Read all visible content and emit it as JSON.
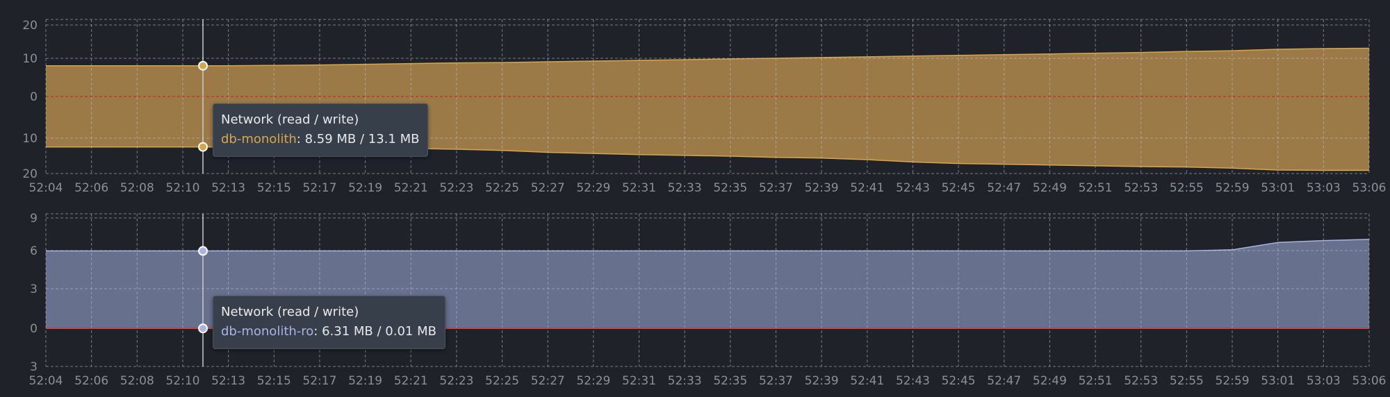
{
  "colors": {
    "background": "#1f2329",
    "grid": "#bfc3c8",
    "zero_line": "#c0392b",
    "series_1": "#d9a54a",
    "series_1_fill": "#a2804a",
    "series_2": "#a9b3e6",
    "series_2_fill": "#6b7592",
    "tooltip_bg": "#37404a",
    "cursor": "#c7cacf"
  },
  "x_tick_labels": [
    "52:04",
    "52:06",
    "52:08",
    "52:10",
    "52:13",
    "52:15",
    "52:17",
    "52:19",
    "52:21",
    "52:23",
    "52:25",
    "52:27",
    "52:29",
    "52:31",
    "52:33",
    "52:35",
    "52:37",
    "52:39",
    "52:41",
    "52:43",
    "52:45",
    "52:47",
    "52:49",
    "52:51",
    "52:53",
    "52:55",
    "52:59",
    "53:01",
    "53:03",
    "53:06"
  ],
  "chart_data": [
    {
      "type": "area",
      "series": [
        {
          "name": "db-monolith",
          "read_values": [
            8.6,
            8.6,
            8.6,
            8.6,
            8.6,
            8.7,
            8.8,
            9.0,
            9.2,
            9.4,
            9.5,
            9.7,
            9.9,
            10.1,
            10.3,
            10.5,
            10.7,
            10.9,
            11.1,
            11.3,
            11.5,
            11.7,
            11.9,
            12.1,
            12.3,
            12.6,
            12.8,
            13.2,
            13.4,
            13.5
          ],
          "write_values": [
            13.1,
            13.1,
            13.1,
            13.1,
            13.1,
            13.2,
            13.3,
            13.4,
            13.5,
            13.7,
            14.0,
            14.5,
            14.8,
            15.1,
            15.3,
            15.5,
            15.8,
            16.0,
            16.4,
            17.0,
            17.4,
            17.6,
            17.8,
            18.0,
            18.2,
            18.3,
            18.6,
            19.1,
            19.2,
            19.2
          ]
        }
      ],
      "y_ticks_top": [
        20,
        10,
        0
      ],
      "y_ticks_bottom": [
        10,
        20
      ],
      "ylim_top": [
        0,
        20
      ],
      "ylim_bottom": [
        0,
        20
      ],
      "cursor_time": "52:11.5",
      "tooltip": {
        "title": "Network (read / write)",
        "series_label": "db-monolith",
        "value_text": ": 8.59 MB / 13.1 MB"
      }
    },
    {
      "type": "area",
      "series": [
        {
          "name": "db-monolith-ro",
          "read_values": [
            6.31,
            6.31,
            6.31,
            6.31,
            6.31,
            6.31,
            6.31,
            6.31,
            6.31,
            6.31,
            6.31,
            6.31,
            6.31,
            6.31,
            6.31,
            6.31,
            6.31,
            6.31,
            6.31,
            6.31,
            6.31,
            6.31,
            6.31,
            6.31,
            6.31,
            6.31,
            6.4,
            7.0,
            7.15,
            7.25
          ],
          "write_values": [
            0.01,
            0.01,
            0.01,
            0.01,
            0.01,
            0.01,
            0.01,
            0.01,
            0.01,
            0.01,
            0.01,
            0.01,
            0.01,
            0.01,
            0.01,
            0.01,
            0.01,
            0.01,
            0.01,
            0.01,
            0.01,
            0.01,
            0.01,
            0.01,
            0.01,
            0.01,
            0.01,
            0.01,
            0.01,
            0.01
          ]
        }
      ],
      "y_ticks_top": [
        9,
        6,
        3,
        0
      ],
      "y_ticks_bottom": [
        3
      ],
      "ylim_top": [
        0,
        9
      ],
      "ylim_bottom": [
        0,
        3
      ],
      "cursor_time": "52:11.5",
      "tooltip": {
        "title": "Network (read / write)",
        "series_label": "db-monolith-ro",
        "value_text": ": 6.31 MB / 0.01 MB"
      }
    }
  ]
}
